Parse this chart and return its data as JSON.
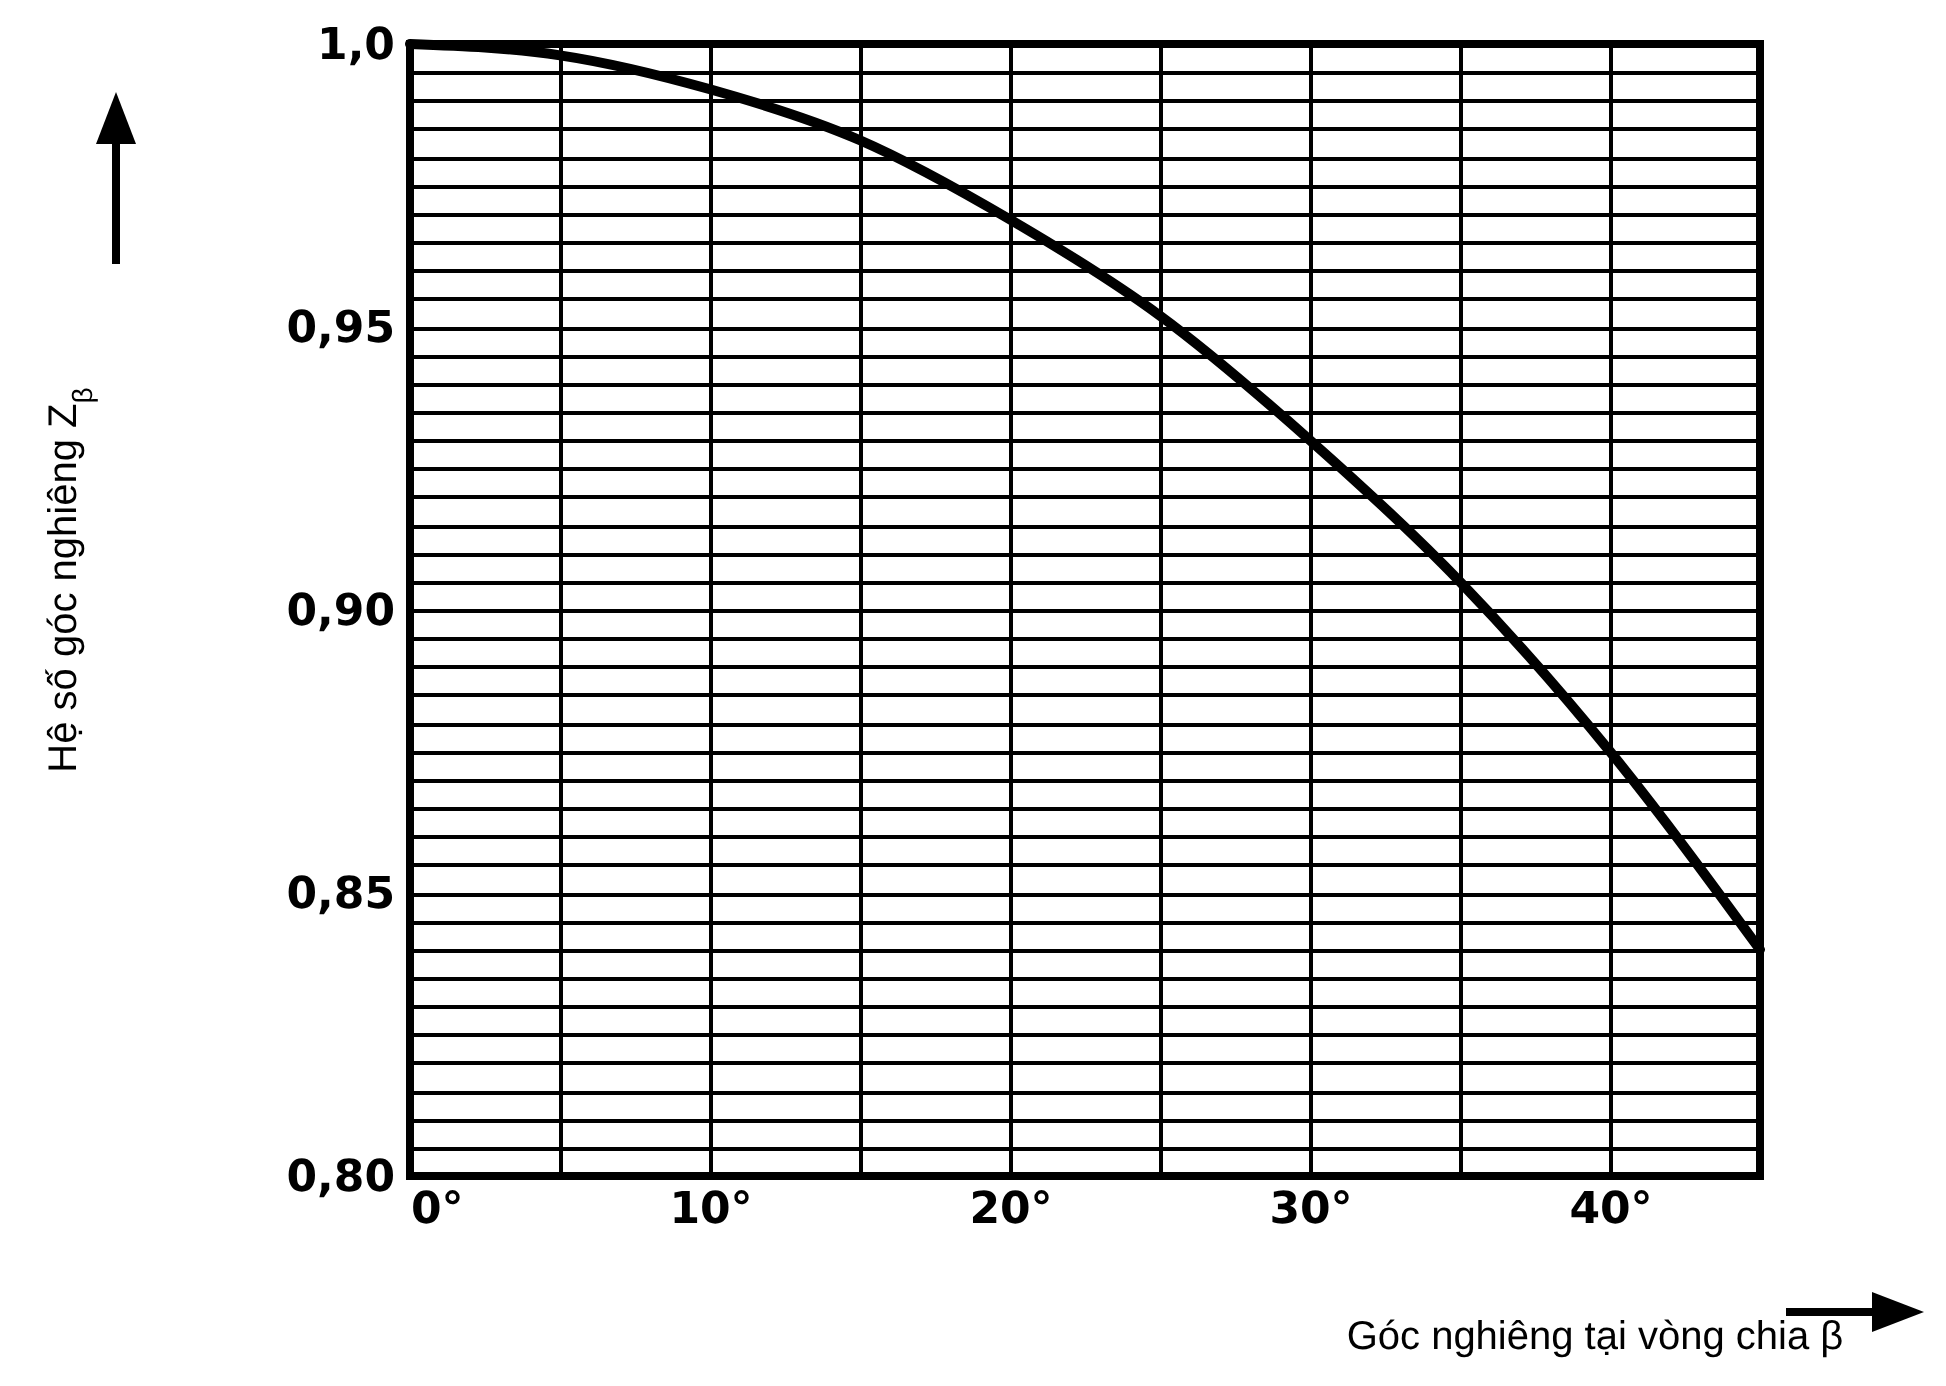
{
  "chart_data": {
    "type": "line",
    "xlabel": "Góc nghiêng tại vòng chia β",
    "ylabel": "Hệ số góc nghiêng Z$_{β}$",
    "x": [
      0,
      5,
      10,
      15,
      20,
      25,
      30,
      35,
      40,
      45
    ],
    "series": [
      {
        "color": "#000000",
        "values": [
          1.0,
          0.998,
          0.992,
          0.983,
          0.969,
          0.952,
          0.93,
          0.905,
          0.875,
          0.84
        ]
      }
    ],
    "xlim": [
      0,
      45
    ],
    "xticks": [
      {
        "value": 0,
        "label": "0°"
      },
      {
        "value": 5,
        "label": null
      },
      {
        "value": 10,
        "label": "10°"
      },
      {
        "value": 15,
        "label": null
      },
      {
        "value": 20,
        "label": "20°"
      },
      {
        "value": 25,
        "label": null
      },
      {
        "value": 30,
        "label": "30°"
      },
      {
        "value": 35,
        "label": null
      },
      {
        "value": 40,
        "label": "40°"
      },
      {
        "value": 45,
        "label": null
      }
    ],
    "ylim": [
      0.8,
      1.0
    ],
    "yticks": [
      {
        "value": 0.8,
        "label": "0,80"
      },
      {
        "value": 0.805,
        "label": null
      },
      {
        "value": 0.81,
        "label": null
      },
      {
        "value": 0.815,
        "label": null
      },
      {
        "value": 0.82,
        "label": null
      },
      {
        "value": 0.825,
        "label": null
      },
      {
        "value": 0.83,
        "label": null
      },
      {
        "value": 0.835,
        "label": null
      },
      {
        "value": 0.84,
        "label": null
      },
      {
        "value": 0.845,
        "label": null
      },
      {
        "value": 0.85,
        "label": "0,85"
      },
      {
        "value": 0.855,
        "label": null
      },
      {
        "value": 0.86,
        "label": null
      },
      {
        "value": 0.865,
        "label": null
      },
      {
        "value": 0.87,
        "label": null
      },
      {
        "value": 0.875,
        "label": null
      },
      {
        "value": 0.88,
        "label": null
      },
      {
        "value": 0.885,
        "label": null
      },
      {
        "value": 0.89,
        "label": null
      },
      {
        "value": 0.895,
        "label": null
      },
      {
        "value": 0.9,
        "label": "0,90"
      },
      {
        "value": 0.905,
        "label": null
      },
      {
        "value": 0.91,
        "label": null
      },
      {
        "value": 0.915,
        "label": null
      },
      {
        "value": 0.92,
        "label": null
      },
      {
        "value": 0.925,
        "label": null
      },
      {
        "value": 0.93,
        "label": null
      },
      {
        "value": 0.935,
        "label": null
      },
      {
        "value": 0.94,
        "label": null
      },
      {
        "value": 0.945,
        "label": null
      },
      {
        "value": 0.95,
        "label": "0,95"
      },
      {
        "value": 0.955,
        "label": null
      },
      {
        "value": 0.96,
        "label": null
      },
      {
        "value": 0.965,
        "label": null
      },
      {
        "value": 0.97,
        "label": null
      },
      {
        "value": 0.975,
        "label": null
      },
      {
        "value": 0.98,
        "label": null
      },
      {
        "value": 0.985,
        "label": null
      },
      {
        "value": 0.99,
        "label": null
      },
      {
        "value": 0.995,
        "label": null
      },
      {
        "value": 1.0,
        "label": "1,0"
      }
    ],
    "grid": true,
    "marker": "none",
    "line_style": "solid"
  }
}
